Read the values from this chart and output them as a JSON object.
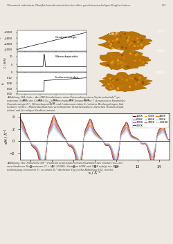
{
  "page_bg": "#ede9e2",
  "header_text": "Thermisch induzierte Oberflächenrekonstruktion bei edlen geschlossenschaligen Kupferclustern",
  "header_page": "231",
  "line_colors": {
    "100K": "#7f0000",
    "200K": "#b22222",
    "300K": "#cd5c5c",
    "400K": "#c87820",
    "500K": "#daa520",
    "600K": "#9370db",
    "700K": "#ba55d3",
    "800K": "#87ceeb",
    "900K": "#b0c4de",
    "1000K": "#d3d3d3"
  },
  "xlabel": "s / Å⁻¹",
  "ylabel": "sM / Å⁻¹",
  "xlim": [
    1,
    15
  ],
  "ylim": [
    -3,
    4.5
  ],
  "yticks": [
    -2,
    0,
    2,
    4
  ],
  "xticks": [
    2,
    4,
    6,
    8,
    10,
    12,
    14
  ],
  "legend_order": [
    "100K",
    "600K",
    "700K",
    "200K",
    "500K",
    "800K",
    "300K",
    "400K",
    "900K",
    "1000K"
  ],
  "legend_colors": {
    "100K": "#7f0000",
    "200K": "#b22222",
    "300K": "#cd5c5c",
    "400K": "#c87820",
    "500K": "#daa520",
    "600K": "#9370db",
    "700K": "#ba55d3",
    "800K": "#87ceeb",
    "900K": "#b0c4de",
    "1000K": "#d3d3d3"
  }
}
